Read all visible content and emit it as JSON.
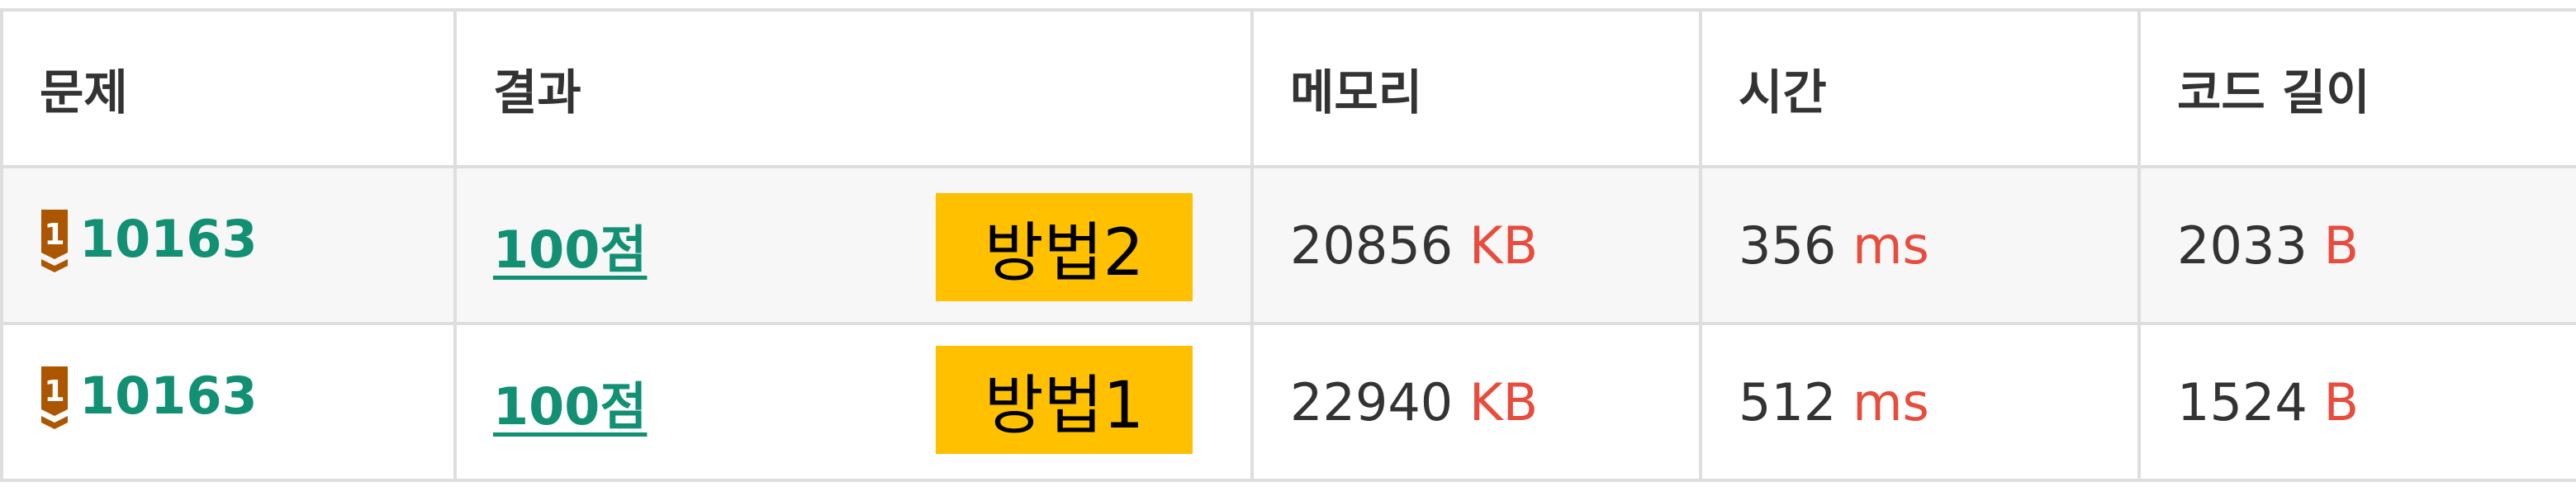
{
  "table": {
    "headers": {
      "problem": "문제",
      "result": "결과",
      "memory": "메모리",
      "time": "시간",
      "code_length": "코드 길이"
    },
    "rows": [
      {
        "tier_badge_number": "1",
        "problem_id": "10163",
        "result": "100점",
        "method_label": "방법2",
        "memory_value": "20856",
        "memory_unit": "KB",
        "time_value": "356",
        "time_unit": "ms",
        "code_length_value": "2033",
        "code_length_unit": "B"
      },
      {
        "tier_badge_number": "1",
        "problem_id": "10163",
        "result": "100점",
        "method_label": "방법1",
        "memory_value": "22940",
        "memory_unit": "KB",
        "time_value": "512",
        "time_unit": "ms",
        "code_length_value": "1524",
        "code_length_unit": "B"
      }
    ]
  },
  "colors": {
    "link_green": "#129074",
    "unit_red": "#e74c3c",
    "badge_bronze": "#ad5600",
    "label_yellow": "#ffc000",
    "border_gray": "#dedede"
  },
  "icons": {
    "tier_badge": "bronze-tier-1-icon"
  }
}
